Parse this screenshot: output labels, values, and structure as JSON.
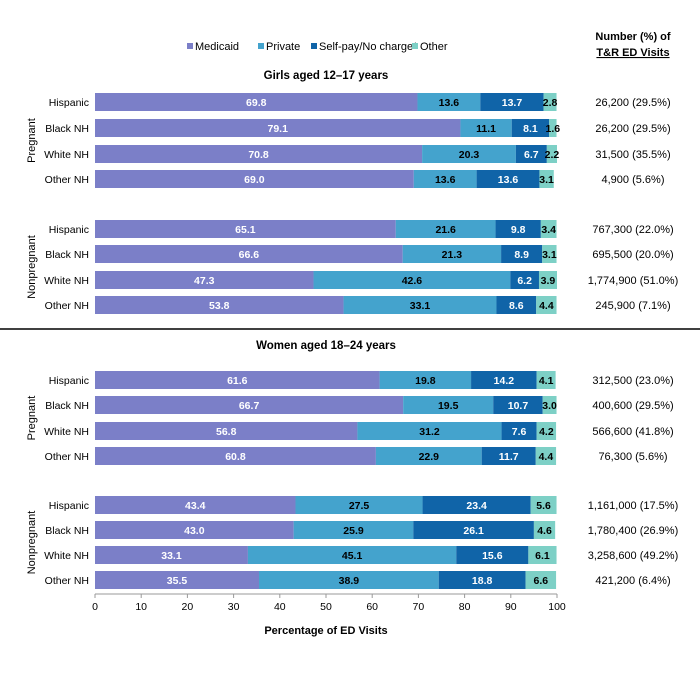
{
  "chart_data": {
    "type": "bar",
    "orientation": "horizontal-stacked",
    "xlabel": "Percentage of ED Visits",
    "xlim": [
      0,
      100
    ],
    "xticks": [
      0,
      10,
      20,
      30,
      40,
      50,
      60,
      70,
      80,
      90,
      100
    ],
    "grid": false,
    "legend": {
      "placement": "top",
      "entries": [
        "Medicaid",
        "Private",
        "Self-pay/No charge*",
        "Other"
      ]
    },
    "colors": {
      "Medicaid": "#7b7fc8",
      "Private": "#44a3cd",
      "Self-pay/No charge*": "#1064a8",
      "Other": "#7dd0c6"
    },
    "right_column_header": [
      "Number (%)  of",
      "T&R ED Visits"
    ],
    "panels": [
      {
        "title": "Girls aged 12–17 years",
        "groups": [
          {
            "label": "Pregnant",
            "rows": [
              {
                "category": "Hispanic",
                "values": [
                  69.8,
                  13.6,
                  13.7,
                  2.8
                ],
                "count": "26,200 (29.5%)"
              },
              {
                "category": "Black NH",
                "values": [
                  79.1,
                  11.1,
                  8.1,
                  1.6
                ],
                "count": "26,200 (29.5%)"
              },
              {
                "category": "White NH",
                "values": [
                  70.8,
                  20.3,
                  6.7,
                  2.2
                ],
                "count": "31,500 (35.5%)"
              },
              {
                "category": "Other NH",
                "values": [
                  69.0,
                  13.6,
                  13.6,
                  3.1
                ],
                "count": "4,900 (5.6%)"
              }
            ]
          },
          {
            "label": "Nonpregnant",
            "rows": [
              {
                "category": "Hispanic",
                "values": [
                  65.1,
                  21.6,
                  9.8,
                  3.4
                ],
                "count": "767,300 (22.0%)"
              },
              {
                "category": "Black NH",
                "values": [
                  66.6,
                  21.3,
                  8.9,
                  3.1
                ],
                "count": "695,500 (20.0%)"
              },
              {
                "category": "White NH",
                "values": [
                  47.3,
                  42.6,
                  6.2,
                  3.9
                ],
                "count": "1,774,900 (51.0%)"
              },
              {
                "category": "Other NH",
                "values": [
                  53.8,
                  33.1,
                  8.6,
                  4.4
                ],
                "count": "245,900 (7.1%)"
              }
            ]
          }
        ]
      },
      {
        "title": "Women aged 18–24 years",
        "groups": [
          {
            "label": "Pregnant",
            "rows": [
              {
                "category": "Hispanic",
                "values": [
                  61.6,
                  19.8,
                  14.2,
                  4.1
                ],
                "count": "312,500 (23.0%)"
              },
              {
                "category": "Black NH",
                "values": [
                  66.7,
                  19.5,
                  10.7,
                  3.0
                ],
                "count": "400,600 (29.5%)"
              },
              {
                "category": "White NH",
                "values": [
                  56.8,
                  31.2,
                  7.6,
                  4.2
                ],
                "count": "566,600 (41.8%)"
              },
              {
                "category": "Other NH",
                "values": [
                  60.8,
                  22.9,
                  11.7,
                  4.4
                ],
                "count": "76,300 (5.6%)"
              }
            ]
          },
          {
            "label": "Nonpregnant",
            "rows": [
              {
                "category": "Hispanic",
                "values": [
                  43.4,
                  27.5,
                  23.4,
                  5.6
                ],
                "count": "1,161,000 (17.5%)"
              },
              {
                "category": "Black NH",
                "values": [
                  43.0,
                  25.9,
                  26.1,
                  4.6
                ],
                "count": "1,780,400 (26.9%)"
              },
              {
                "category": "White NH",
                "values": [
                  33.1,
                  45.1,
                  15.6,
                  6.1
                ],
                "count": "3,258,600 (49.2%)"
              },
              {
                "category": "Other NH",
                "values": [
                  35.5,
                  38.9,
                  18.8,
                  6.6
                ],
                "count": "421,200 (6.4%)"
              }
            ]
          }
        ]
      }
    ]
  }
}
